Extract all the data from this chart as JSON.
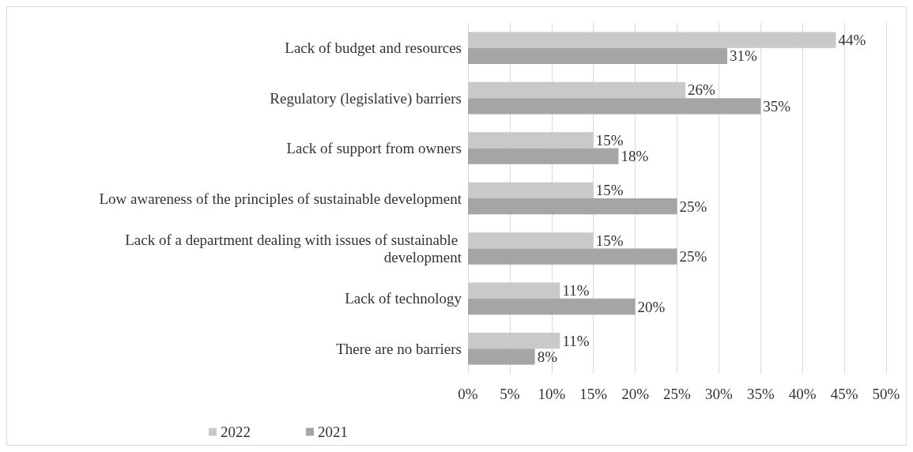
{
  "chart_data": {
    "type": "bar",
    "orientation": "horizontal",
    "categories": [
      "Lack of budget and resources",
      "Regulatory (legislative) barriers",
      "Lack of support from owners",
      "Low awareness of the principles of sustainable development",
      "Lack of a department dealing with issues of sustainable development",
      "Lack of technology",
      "There are no barriers"
    ],
    "series": [
      {
        "name": "2022",
        "color": "#c9c9c9",
        "values": [
          44,
          26,
          15,
          15,
          15,
          11,
          11
        ],
        "value_labels": [
          "44%",
          "26%",
          "15%",
          "15%",
          "15%",
          "11%",
          "11%"
        ]
      },
      {
        "name": "2021",
        "color": "#a5a5a5",
        "values": [
          31,
          35,
          18,
          25,
          25,
          20,
          8
        ],
        "value_labels": [
          "31%",
          "35%",
          "18%",
          "25%",
          "25%",
          "20%",
          "8%"
        ]
      }
    ],
    "xlim": [
      0,
      50
    ],
    "xticks": [
      {
        "value": 0,
        "label": "0%"
      },
      {
        "value": 5,
        "label": "5%"
      },
      {
        "value": 10,
        "label": "10%"
      },
      {
        "value": 15,
        "label": "15%"
      },
      {
        "value": 20,
        "label": "20%"
      },
      {
        "value": 25,
        "label": "25%"
      },
      {
        "value": 30,
        "label": "30%"
      },
      {
        "value": 35,
        "label": "35%"
      },
      {
        "value": 40,
        "label": "40%"
      },
      {
        "value": 45,
        "label": "45%"
      },
      {
        "value": 50,
        "label": "50%"
      }
    ],
    "grid": "x",
    "legend": "bottom"
  }
}
